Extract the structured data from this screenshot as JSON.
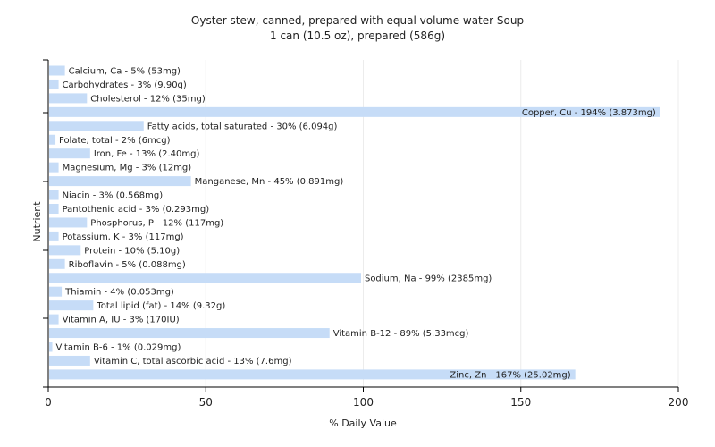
{
  "chart_data": {
    "type": "bar",
    "orientation": "horizontal",
    "title": "Oyster stew, canned, prepared with equal volume water Soup",
    "subtitle": "1 can (10.5 oz), prepared (586g)",
    "xlabel": "% Daily Value",
    "ylabel": "Nutrient",
    "xlim": [
      0,
      200
    ],
    "xticks": [
      0,
      50,
      100,
      150,
      200
    ],
    "grid": "vertical",
    "bar_color": "#c6dcf7",
    "categories": [
      "Calcium, Ca - 5% (53mg)",
      "Carbohydrates - 3% (9.90g)",
      "Cholesterol - 12% (35mg)",
      "Copper, Cu - 194% (3.873mg)",
      "Fatty acids, total saturated - 30% (6.094g)",
      "Folate, total - 2% (6mcg)",
      "Iron, Fe - 13% (2.40mg)",
      "Magnesium, Mg - 3% (12mg)",
      "Manganese, Mn - 45% (0.891mg)",
      "Niacin - 3% (0.568mg)",
      "Pantothenic acid - 3% (0.293mg)",
      "Phosphorus, P - 12% (117mg)",
      "Potassium, K - 3% (117mg)",
      "Protein - 10% (5.10g)",
      "Riboflavin - 5% (0.088mg)",
      "Sodium, Na - 99% (2385mg)",
      "Thiamin - 4% (0.053mg)",
      "Total lipid (fat) - 14% (9.32g)",
      "Vitamin A, IU - 3% (170IU)",
      "Vitamin B-12 - 89% (5.33mcg)",
      "Vitamin B-6 - 1% (0.029mg)",
      "Vitamin C, total ascorbic acid - 13% (7.6mg)",
      "Zinc, Zn - 167% (25.02mg)"
    ],
    "values": [
      5,
      3,
      12,
      194,
      30,
      2,
      13,
      3,
      45,
      3,
      3,
      12,
      3,
      10,
      5,
      99,
      4,
      14,
      3,
      89,
      1,
      13,
      167
    ]
  }
}
